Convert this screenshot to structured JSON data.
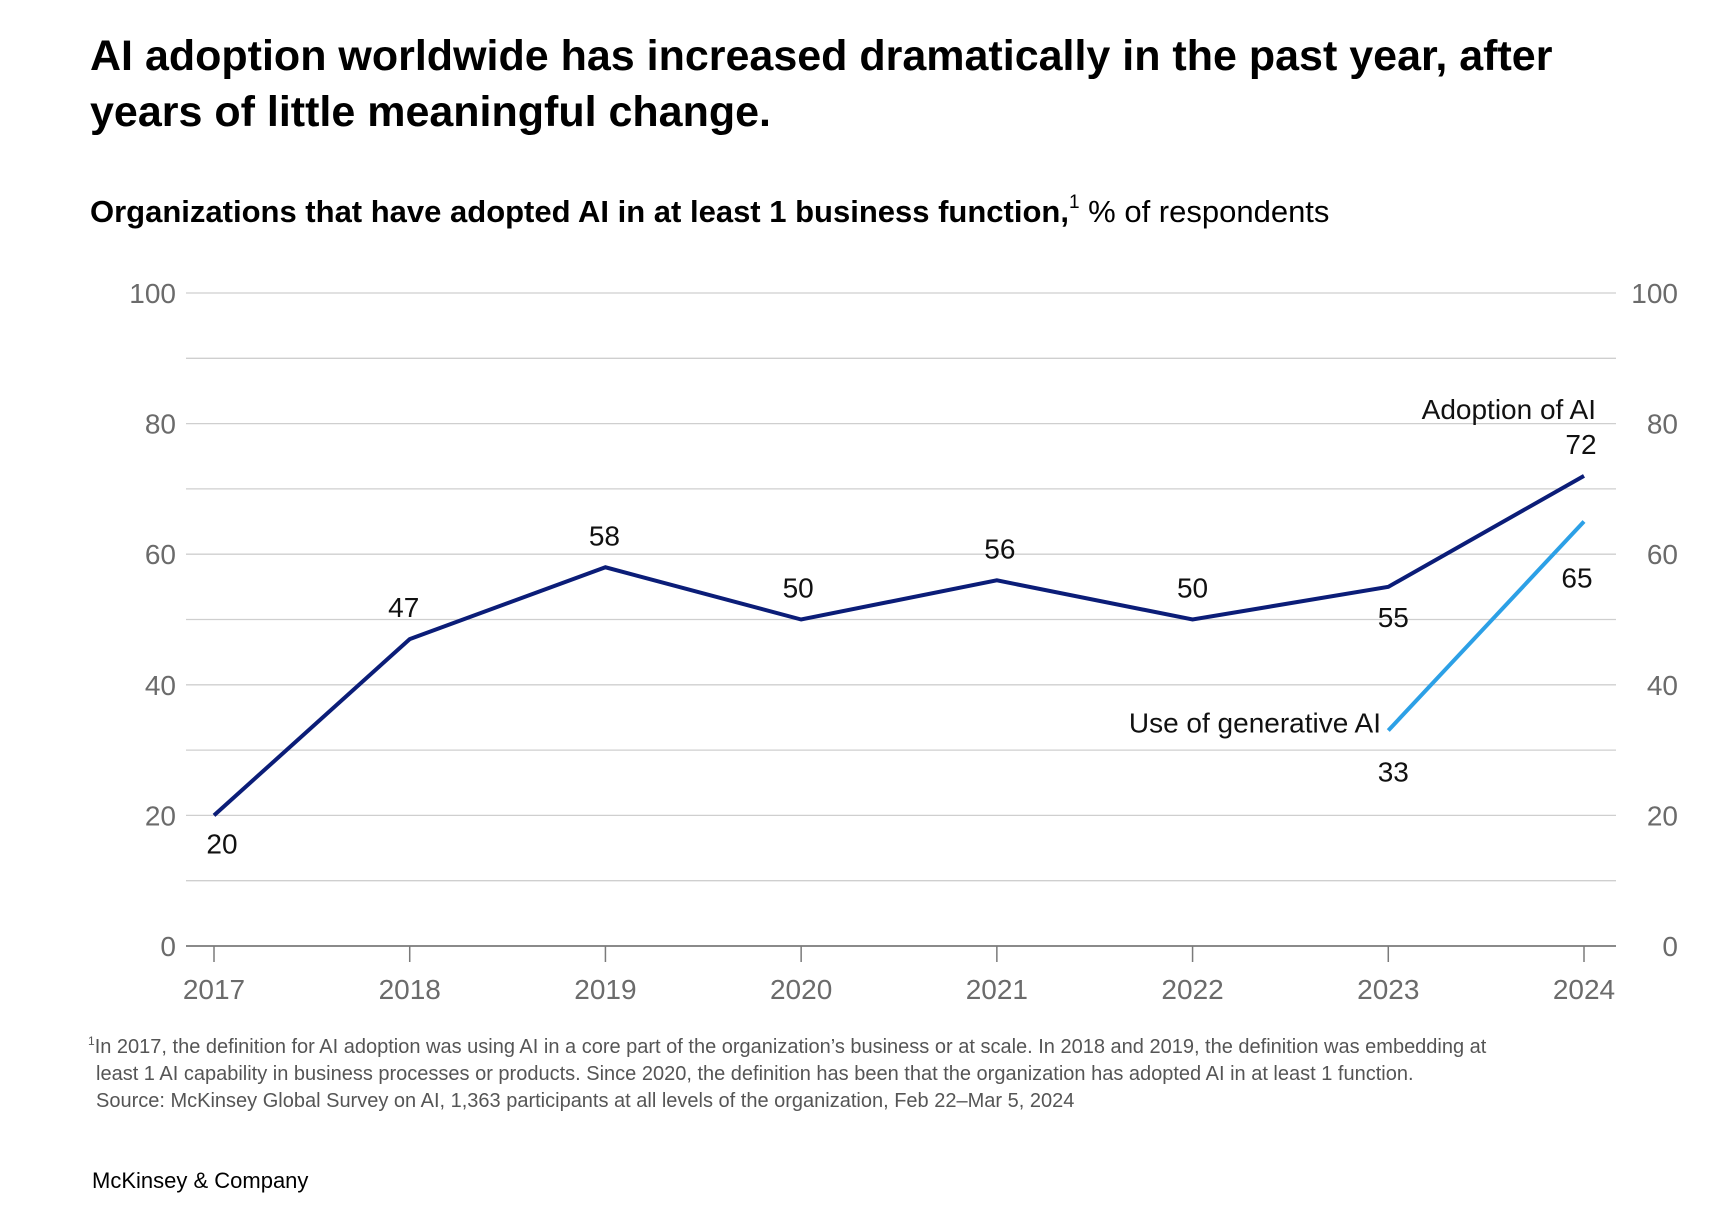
{
  "headline": "AI adoption worldwide has increased dramatically in the past year, after years of little meaningful change.",
  "subtitle": {
    "bold": "Organizations that have adopted AI in at least 1 business function,",
    "footnote_marker": "1",
    "unit": "% of respondents"
  },
  "chart_data": {
    "type": "line",
    "title": "Organizations that have adopted AI in at least 1 business function, % of respondents",
    "categories": [
      "2017",
      "2018",
      "2019",
      "2020",
      "2021",
      "2022",
      "2023",
      "2024"
    ],
    "ylim": [
      0,
      100
    ],
    "yticks": [
      0,
      20,
      40,
      60,
      80,
      100
    ],
    "yticks_minor": [
      10,
      30,
      50,
      70,
      90
    ],
    "y_axis_both_sides": true,
    "grid": true,
    "series": [
      {
        "name": "Adoption of AI",
        "color": "#0b1d78",
        "x": [
          "2017",
          "2018",
          "2019",
          "2020",
          "2021",
          "2022",
          "2023",
          "2024"
        ],
        "values": [
          20,
          47,
          58,
          50,
          56,
          50,
          55,
          72
        ],
        "labels": [
          "20",
          "47",
          "58",
          "50",
          "56",
          "50",
          "55",
          "72"
        ]
      },
      {
        "name": "Use of generative AI",
        "color": "#2ca0e6",
        "x": [
          "2023",
          "2024"
        ],
        "values": [
          33,
          65
        ],
        "labels": [
          "33",
          "65"
        ]
      }
    ]
  },
  "footnote": {
    "marker": "1",
    "lines": [
      "In 2017, the definition for AI adoption was using AI in a core part of the organization’s business or at scale. In 2018 and 2019, the definition was embedding at",
      "least 1 AI capability in business processes or products. Since 2020, the definition has been that the organization has adopted AI in at least 1 function.",
      "Source: McKinsey Global Survey on AI, 1,363 participants at all levels of the organization, Feb 22–Mar 5, 2024"
    ]
  },
  "brand": "McKinsey & Company"
}
